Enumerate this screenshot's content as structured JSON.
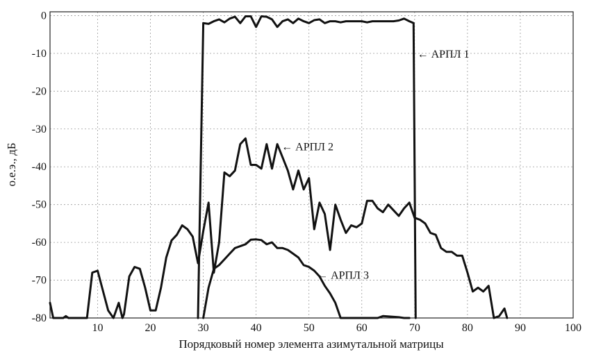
{
  "chart_data": {
    "type": "line",
    "xlabel": "Порядковый номер элемента азимутальной матрицы",
    "ylabel": "о.е.э., дБ",
    "xlim": [
      1,
      100
    ],
    "ylim": [
      -80,
      1
    ],
    "xticks": [
      10,
      20,
      30,
      40,
      50,
      60,
      70,
      80,
      90,
      100
    ],
    "yticks": [
      0,
      -10,
      -20,
      -30,
      -40,
      -50,
      -60,
      -70,
      -80
    ],
    "grid": true,
    "series": [
      {
        "annotation": "← АРПЛ 1",
        "points": [
          [
            29,
            -80
          ],
          [
            30,
            -2
          ],
          [
            31,
            -2.2
          ],
          [
            32,
            -1.5
          ],
          [
            33,
            -1
          ],
          [
            34,
            -1.8
          ],
          [
            35,
            -0.8
          ],
          [
            36,
            -0.3
          ],
          [
            37,
            -2
          ],
          [
            38,
            -0.2
          ],
          [
            39,
            -0.2
          ],
          [
            40,
            -3
          ],
          [
            41,
            -0.2
          ],
          [
            42,
            -0.3
          ],
          [
            43,
            -1
          ],
          [
            44,
            -3
          ],
          [
            45,
            -1.5
          ],
          [
            46,
            -1
          ],
          [
            47,
            -2
          ],
          [
            48,
            -0.8
          ],
          [
            49,
            -1.5
          ],
          [
            50,
            -2
          ],
          [
            51,
            -1.2
          ],
          [
            52,
            -1
          ],
          [
            53,
            -2
          ],
          [
            54,
            -1.5
          ],
          [
            55,
            -1.5
          ],
          [
            56,
            -1.8
          ],
          [
            57,
            -1.5
          ],
          [
            58,
            -1.5
          ],
          [
            59,
            -1.5
          ],
          [
            60,
            -1.5
          ],
          [
            61,
            -1.8
          ],
          [
            62,
            -1.5
          ],
          [
            63,
            -1.5
          ],
          [
            64,
            -1.5
          ],
          [
            65,
            -1.5
          ],
          [
            66,
            -1.5
          ],
          [
            67,
            -1.3
          ],
          [
            68,
            -0.8
          ],
          [
            69,
            -1.5
          ],
          [
            69.8,
            -2
          ],
          [
            70.2,
            -80
          ]
        ]
      },
      {
        "annotation": "← АРПЛ 2",
        "points": [
          [
            1,
            -76
          ],
          [
            1.6,
            -80
          ],
          [
            3.5,
            -80
          ],
          [
            4,
            -79.5
          ],
          [
            4.5,
            -80
          ],
          [
            8,
            -80
          ],
          [
            9,
            -68
          ],
          [
            10,
            -67.5
          ],
          [
            12,
            -78
          ],
          [
            13,
            -80
          ],
          [
            14,
            -76
          ],
          [
            14.7,
            -80
          ],
          [
            15,
            -79
          ],
          [
            16,
            -69
          ],
          [
            17,
            -66.5
          ],
          [
            18,
            -67
          ],
          [
            19,
            -72
          ],
          [
            20,
            -78
          ],
          [
            21,
            -78
          ],
          [
            22,
            -72
          ],
          [
            23,
            -64
          ],
          [
            24,
            -59.5
          ],
          [
            25,
            -58
          ],
          [
            26,
            -55.5
          ],
          [
            27,
            -56.5
          ],
          [
            28,
            -58.5
          ],
          [
            29,
            -65.5
          ],
          [
            30,
            -57
          ],
          [
            31,
            -49.5
          ],
          [
            32,
            -68
          ],
          [
            33,
            -60
          ],
          [
            34,
            -41.5
          ],
          [
            35,
            -42.5
          ],
          [
            36,
            -41
          ],
          [
            37,
            -34
          ],
          [
            38,
            -32.5
          ],
          [
            39,
            -39.5
          ],
          [
            40,
            -39.5
          ],
          [
            41,
            -40.5
          ],
          [
            42,
            -34
          ],
          [
            43,
            -40.5
          ],
          [
            44,
            -34
          ],
          [
            45,
            -37.5
          ],
          [
            46,
            -41
          ],
          [
            47,
            -46
          ],
          [
            48,
            -41
          ],
          [
            49,
            -46
          ],
          [
            50,
            -43
          ],
          [
            51,
            -56.5
          ],
          [
            52,
            -49.5
          ],
          [
            53,
            -52.5
          ],
          [
            54,
            -62
          ],
          [
            55,
            -50
          ],
          [
            56,
            -54
          ],
          [
            57,
            -57.5
          ],
          [
            58,
            -55.5
          ],
          [
            59,
            -56
          ],
          [
            60,
            -55
          ],
          [
            61,
            -49
          ],
          [
            62,
            -49
          ],
          [
            63,
            -51
          ],
          [
            64,
            -52
          ],
          [
            65,
            -50
          ],
          [
            66,
            -51.5
          ],
          [
            67,
            -53
          ],
          [
            68,
            -51
          ],
          [
            69,
            -49.5
          ],
          [
            70,
            -53.5
          ],
          [
            71,
            -54
          ],
          [
            72,
            -55
          ],
          [
            73,
            -57.5
          ],
          [
            74,
            -58
          ],
          [
            75,
            -61.5
          ],
          [
            76,
            -62.5
          ],
          [
            77,
            -62.5
          ],
          [
            78,
            -63.5
          ],
          [
            79,
            -63.5
          ],
          [
            80,
            -68
          ],
          [
            81,
            -73
          ],
          [
            82,
            -72
          ],
          [
            83,
            -73
          ],
          [
            84,
            -71.5
          ],
          [
            85,
            -80
          ],
          [
            86,
            -79.5
          ],
          [
            87,
            -77.5
          ],
          [
            87.5,
            -80
          ]
        ]
      },
      {
        "annotation": "← АРПЛ 3",
        "points": [
          [
            30,
            -80
          ],
          [
            31,
            -72
          ],
          [
            32,
            -67
          ],
          [
            33,
            -66
          ],
          [
            34,
            -64.5
          ],
          [
            35,
            -63
          ],
          [
            36,
            -61.5
          ],
          [
            37,
            -61
          ],
          [
            38,
            -60.5
          ],
          [
            39,
            -59.3
          ],
          [
            40,
            -59.2
          ],
          [
            41,
            -59.4
          ],
          [
            42,
            -60.5
          ],
          [
            43,
            -60
          ],
          [
            44,
            -61.5
          ],
          [
            45,
            -61.5
          ],
          [
            46,
            -62
          ],
          [
            47,
            -63
          ],
          [
            48,
            -64
          ],
          [
            49,
            -66
          ],
          [
            50,
            -66.5
          ],
          [
            51,
            -67.5
          ],
          [
            52,
            -69
          ],
          [
            53,
            -71.5
          ],
          [
            54,
            -73.5
          ],
          [
            55,
            -76
          ],
          [
            56,
            -80
          ],
          [
            63,
            -80
          ],
          [
            64,
            -79.5
          ],
          [
            67,
            -79.8
          ],
          [
            68,
            -80
          ],
          [
            69,
            -80
          ]
        ]
      }
    ]
  }
}
